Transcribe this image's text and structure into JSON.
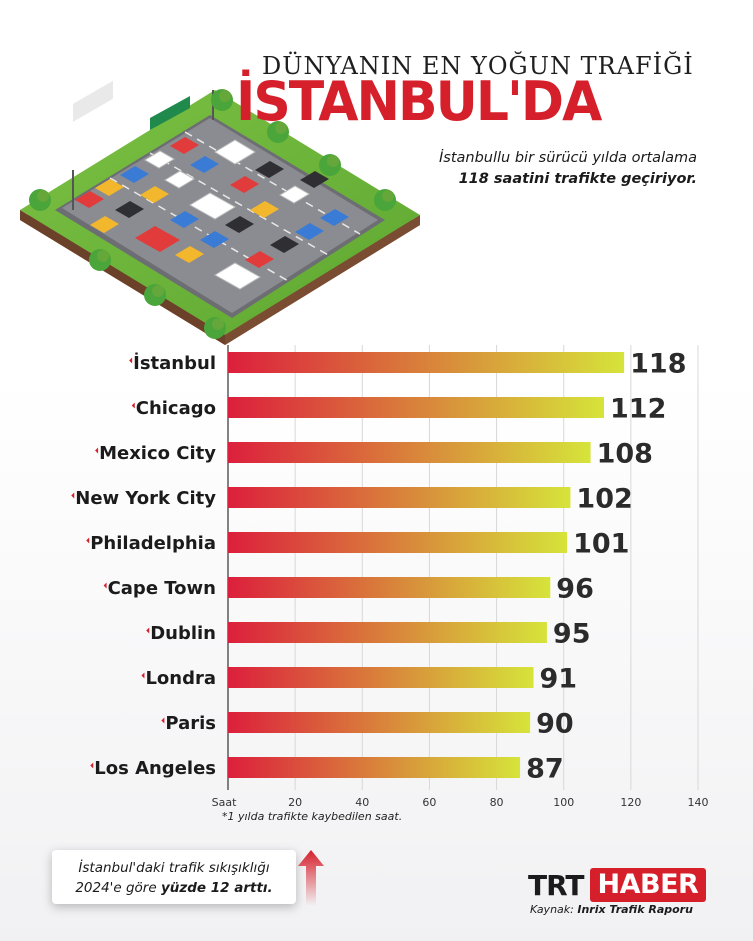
{
  "header": {
    "title_line1": "DÜNYANIN EN YOĞUN TRAFİĞİ",
    "title_line2": "İSTANBUL'DA",
    "subtitle_line1": "İstanbullu bir sürücü yılda ortalama",
    "subtitle_line2": "118 saatini trafikte geçiriyor."
  },
  "colors": {
    "accent": "#d5202c",
    "bar_start": "#dc1f3c",
    "bar_end": "#d6e43a"
  },
  "chart_data": {
    "type": "bar",
    "orientation": "horizontal",
    "categories": [
      "İstanbul",
      "Chicago",
      "Mexico City",
      "New York City",
      "Philadelphia",
      "Cape Town",
      "Dublin",
      "Londra",
      "Paris",
      "Los Angeles"
    ],
    "values": [
      118,
      112,
      108,
      102,
      101,
      96,
      95,
      91,
      90,
      87
    ],
    "xlabel": "Saat",
    "xlim": [
      0,
      140
    ],
    "xticks": [
      20,
      40,
      60,
      80,
      100,
      120,
      140
    ],
    "grid": true,
    "footnote": "*1 yılda trafikte kaybedilen saat."
  },
  "callout": {
    "line1": "İstanbul'daki trafik sıkışıklığı",
    "line2_prefix": "2024'e göre ",
    "line2_bold": "yüzde 12 arttı."
  },
  "brand": {
    "trt": "TRT",
    "haber": "HABER"
  },
  "source": {
    "prefix": "Kaynak: ",
    "name": "Inrix Trafik Raporu"
  }
}
